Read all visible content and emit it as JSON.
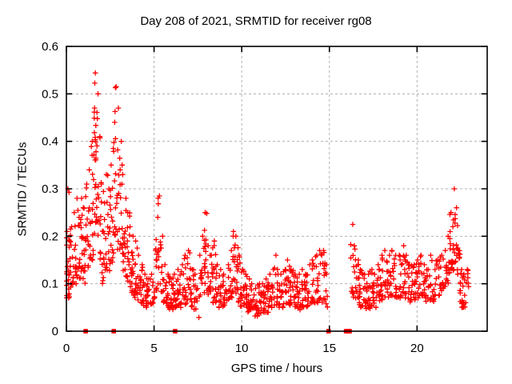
{
  "chart_data": {
    "type": "scatter",
    "title": "Day 208 of 2021, SRMTID for receiver rg08",
    "xlabel": "GPS time / hours",
    "ylabel": "SRMTID / TECUs",
    "xlim": [
      0,
      24
    ],
    "ylim": [
      0,
      0.6
    ],
    "x_ticks": [
      0,
      5,
      10,
      15,
      20
    ],
    "x_tick_labels": [
      "0",
      "5",
      "10",
      "15",
      "20"
    ],
    "y_ticks": [
      0,
      0.1,
      0.2,
      0.3,
      0.4,
      0.5,
      0.6
    ],
    "y_tick_labels": [
      "0",
      "0.1",
      "0.2",
      "0.3",
      "0.4",
      "0.5",
      "0.6"
    ],
    "grid": true,
    "legend": "none",
    "colors": {
      "marker": "#ff0000",
      "grid": "#b0b0b0",
      "axis": "#000000",
      "background": "#ffffff",
      "text": "#000000"
    },
    "data_gap_hours": [
      14.9,
      16.25
    ],
    "series": [
      {
        "name": "srmtid-plus-markers",
        "marker": "plus",
        "color": "#ff0000",
        "cluster_format": "[gps_hour, point_count, y_min_tecu, y_max_tecu]",
        "clusters": [
          [
            0.05,
            16,
            0.07,
            0.21
          ],
          [
            0.08,
            2,
            0.27,
            0.3
          ],
          [
            0.18,
            12,
            0.07,
            0.19
          ],
          [
            0.32,
            10,
            0.08,
            0.22
          ],
          [
            0.45,
            10,
            0.1,
            0.25
          ],
          [
            0.58,
            10,
            0.1,
            0.28
          ],
          [
            0.72,
            10,
            0.1,
            0.24
          ],
          [
            0.85,
            10,
            0.11,
            0.28
          ],
          [
            1.0,
            12,
            0.1,
            0.26
          ],
          [
            1.15,
            10,
            0.12,
            0.31
          ],
          [
            1.3,
            10,
            0.13,
            0.34
          ],
          [
            1.45,
            12,
            0.15,
            0.4
          ],
          [
            1.58,
            12,
            0.18,
            0.47
          ],
          [
            1.68,
            12,
            0.22,
            0.544
          ],
          [
            1.78,
            10,
            0.2,
            0.5
          ],
          [
            1.88,
            10,
            0.15,
            0.41
          ],
          [
            2.02,
            10,
            0.12,
            0.31
          ],
          [
            2.16,
            10,
            0.1,
            0.27
          ],
          [
            2.3,
            10,
            0.12,
            0.33
          ],
          [
            2.44,
            10,
            0.12,
            0.3
          ],
          [
            2.58,
            10,
            0.14,
            0.35
          ],
          [
            2.72,
            10,
            0.17,
            0.44
          ],
          [
            2.84,
            12,
            0.2,
            0.515
          ],
          [
            2.96,
            10,
            0.17,
            0.47
          ],
          [
            3.1,
            10,
            0.14,
            0.4
          ],
          [
            3.24,
            10,
            0.12,
            0.33
          ],
          [
            3.38,
            12,
            0.1,
            0.28
          ],
          [
            3.52,
            10,
            0.1,
            0.25
          ],
          [
            3.66,
            12,
            0.08,
            0.22
          ],
          [
            3.8,
            10,
            0.08,
            0.2
          ],
          [
            3.95,
            12,
            0.07,
            0.19
          ],
          [
            4.12,
            12,
            0.06,
            0.16
          ],
          [
            4.3,
            12,
            0.055,
            0.14
          ],
          [
            4.5,
            14,
            0.05,
            0.12
          ],
          [
            4.7,
            12,
            0.05,
            0.11
          ],
          [
            4.88,
            10,
            0.055,
            0.12
          ],
          [
            5.05,
            8,
            0.07,
            0.17
          ],
          [
            5.2,
            8,
            0.09,
            0.24
          ],
          [
            5.32,
            8,
            0.1,
            0.285
          ],
          [
            5.45,
            8,
            0.08,
            0.2
          ],
          [
            5.6,
            10,
            0.06,
            0.14
          ],
          [
            5.78,
            14,
            0.05,
            0.12
          ],
          [
            5.98,
            14,
            0.045,
            0.11
          ],
          [
            6.18,
            14,
            0.05,
            0.12
          ],
          [
            6.38,
            12,
            0.05,
            0.13
          ],
          [
            6.58,
            12,
            0.05,
            0.14
          ],
          [
            6.78,
            12,
            0.055,
            0.16
          ],
          [
            6.98,
            12,
            0.06,
            0.17
          ],
          [
            7.18,
            10,
            0.05,
            0.13
          ],
          [
            7.35,
            8,
            0.045,
            0.12
          ],
          [
            7.5,
            3,
            0.025,
            0.09
          ],
          [
            7.65,
            8,
            0.07,
            0.16
          ],
          [
            7.8,
            10,
            0.08,
            0.2
          ],
          [
            7.95,
            10,
            0.09,
            0.25
          ],
          [
            8.1,
            10,
            0.07,
            0.18
          ],
          [
            8.28,
            10,
            0.06,
            0.16
          ],
          [
            8.44,
            10,
            0.07,
            0.19
          ],
          [
            8.6,
            10,
            0.05,
            0.14
          ],
          [
            8.8,
            12,
            0.05,
            0.13
          ],
          [
            9.0,
            12,
            0.05,
            0.12
          ],
          [
            9.2,
            10,
            0.06,
            0.14
          ],
          [
            9.4,
            10,
            0.07,
            0.17
          ],
          [
            9.55,
            12,
            0.08,
            0.21
          ],
          [
            9.7,
            12,
            0.08,
            0.2
          ],
          [
            9.85,
            10,
            0.06,
            0.16
          ],
          [
            10.02,
            12,
            0.05,
            0.13
          ],
          [
            10.2,
            12,
            0.05,
            0.12
          ],
          [
            10.4,
            12,
            0.04,
            0.11
          ],
          [
            10.6,
            12,
            0.035,
            0.1
          ],
          [
            10.8,
            14,
            0.03,
            0.09
          ],
          [
            11.0,
            14,
            0.03,
            0.1
          ],
          [
            11.2,
            12,
            0.04,
            0.1
          ],
          [
            11.4,
            12,
            0.04,
            0.11
          ],
          [
            11.6,
            12,
            0.05,
            0.12
          ],
          [
            11.8,
            10,
            0.05,
            0.13
          ],
          [
            11.98,
            3,
            0.13,
            0.16
          ],
          [
            12.05,
            10,
            0.05,
            0.12
          ],
          [
            12.25,
            12,
            0.05,
            0.12
          ],
          [
            12.45,
            12,
            0.05,
            0.13
          ],
          [
            12.65,
            12,
            0.055,
            0.15
          ],
          [
            12.85,
            12,
            0.05,
            0.13
          ],
          [
            13.05,
            12,
            0.05,
            0.12
          ],
          [
            13.25,
            12,
            0.045,
            0.12
          ],
          [
            13.45,
            12,
            0.05,
            0.13
          ],
          [
            13.65,
            12,
            0.05,
            0.12
          ],
          [
            13.85,
            12,
            0.05,
            0.14
          ],
          [
            14.05,
            12,
            0.06,
            0.15
          ],
          [
            14.25,
            10,
            0.06,
            0.16
          ],
          [
            14.45,
            10,
            0.065,
            0.17
          ],
          [
            14.65,
            10,
            0.06,
            0.17
          ],
          [
            14.82,
            8,
            0.05,
            0.14
          ],
          [
            16.3,
            10,
            0.08,
            0.225
          ],
          [
            16.45,
            10,
            0.07,
            0.18
          ],
          [
            16.62,
            10,
            0.06,
            0.15
          ],
          [
            16.8,
            12,
            0.05,
            0.13
          ],
          [
            17.0,
            12,
            0.05,
            0.12
          ],
          [
            17.2,
            12,
            0.045,
            0.12
          ],
          [
            17.4,
            12,
            0.05,
            0.13
          ],
          [
            17.6,
            12,
            0.05,
            0.12
          ],
          [
            17.8,
            12,
            0.06,
            0.14
          ],
          [
            18.0,
            12,
            0.065,
            0.16
          ],
          [
            18.2,
            10,
            0.07,
            0.17
          ],
          [
            18.4,
            10,
            0.07,
            0.16
          ],
          [
            18.6,
            12,
            0.075,
            0.17
          ],
          [
            18.8,
            12,
            0.07,
            0.16
          ],
          [
            19.0,
            12,
            0.07,
            0.16
          ],
          [
            19.2,
            10,
            0.075,
            0.18
          ],
          [
            19.4,
            10,
            0.07,
            0.16
          ],
          [
            19.6,
            12,
            0.06,
            0.14
          ],
          [
            19.8,
            12,
            0.065,
            0.14
          ],
          [
            20.0,
            12,
            0.07,
            0.15
          ],
          [
            20.2,
            12,
            0.075,
            0.16
          ],
          [
            20.4,
            12,
            0.07,
            0.14
          ],
          [
            20.6,
            10,
            0.06,
            0.13
          ],
          [
            20.8,
            10,
            0.065,
            0.16
          ],
          [
            21.0,
            10,
            0.06,
            0.13
          ],
          [
            21.2,
            10,
            0.075,
            0.15
          ],
          [
            21.4,
            10,
            0.08,
            0.16
          ],
          [
            21.6,
            10,
            0.09,
            0.17
          ],
          [
            21.8,
            10,
            0.1,
            0.2
          ],
          [
            21.95,
            12,
            0.12,
            0.25
          ],
          [
            22.1,
            12,
            0.13,
            0.3
          ],
          [
            22.25,
            10,
            0.12,
            0.26
          ],
          [
            22.4,
            10,
            0.08,
            0.17
          ],
          [
            22.55,
            10,
            0.05,
            0.13
          ],
          [
            22.7,
            10,
            0.05,
            0.12
          ],
          [
            22.88,
            8,
            0.06,
            0.13
          ]
        ]
      },
      {
        "name": "baseline-flag-squares",
        "marker": "filled-square",
        "color": "#ff0000",
        "points": [
          [
            1.1,
            0
          ],
          [
            2.7,
            0
          ],
          [
            6.2,
            0
          ],
          [
            14.95,
            0
          ],
          [
            15.95,
            0
          ],
          [
            16.05,
            0
          ],
          [
            16.15,
            0
          ]
        ]
      }
    ]
  }
}
